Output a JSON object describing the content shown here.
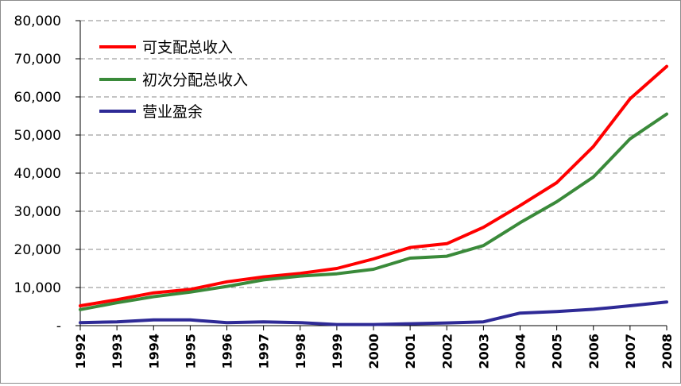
{
  "chart_data": {
    "type": "line",
    "x": [
      "1992",
      "1993",
      "1994",
      "1995",
      "1996",
      "1997",
      "1998",
      "1999",
      "2000",
      "2001",
      "2002",
      "2003",
      "2004",
      "2005",
      "2006",
      "2007",
      "2008"
    ],
    "ylim": [
      0,
      80000
    ],
    "yticks": [
      {
        "value": 0,
        "label": "-"
      },
      {
        "value": 10000,
        "label": "10,000"
      },
      {
        "value": 20000,
        "label": "20,000"
      },
      {
        "value": 30000,
        "label": "30,000"
      },
      {
        "value": 40000,
        "label": "40,000"
      },
      {
        "value": 50000,
        "label": "50,000"
      },
      {
        "value": 60000,
        "label": "60,000"
      },
      {
        "value": 70000,
        "label": "70,000"
      },
      {
        "value": 80000,
        "label": "80,000"
      }
    ],
    "grid": true,
    "legend_position": "top-left",
    "series": [
      {
        "name": "可支配总收入",
        "color": "#ff0000",
        "values": [
          5200,
          6800,
          8600,
          9500,
          11500,
          12800,
          13700,
          15000,
          17500,
          20500,
          21500,
          25800,
          31500,
          37500,
          47000,
          59500,
          68000
        ]
      },
      {
        "name": "初次分配总收入",
        "color": "#3a8a3a",
        "values": [
          4200,
          6000,
          7600,
          8800,
          10300,
          12000,
          13000,
          13600,
          14800,
          17700,
          18200,
          21000,
          27000,
          32500,
          39000,
          49000,
          55500
        ]
      },
      {
        "name": "营业盈余",
        "color": "#2e2a96",
        "values": [
          800,
          1000,
          1500,
          1500,
          800,
          1000,
          800,
          300,
          300,
          500,
          700,
          1000,
          3300,
          3700,
          4300,
          5200,
          6200
        ]
      }
    ]
  }
}
